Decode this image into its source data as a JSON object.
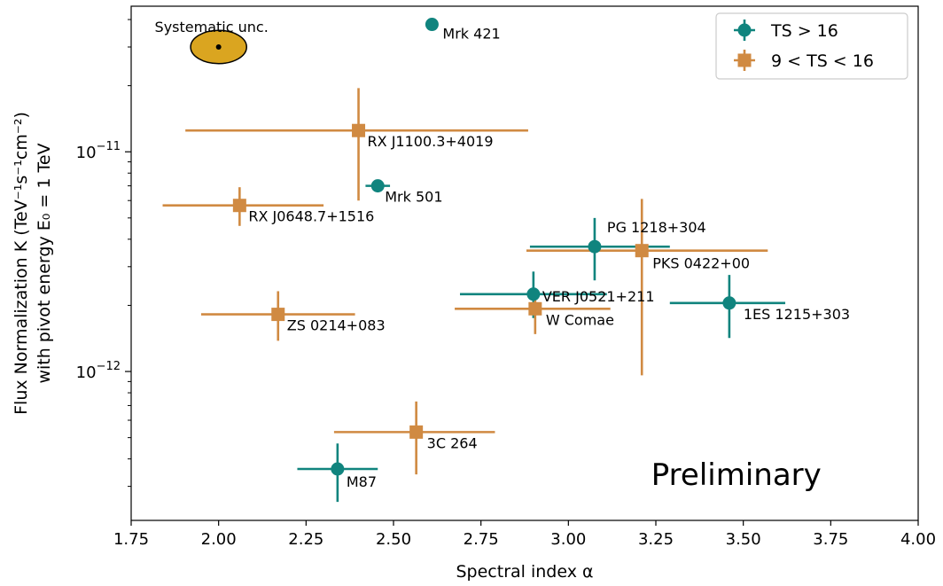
{
  "chart_data": {
    "type": "scatter",
    "xlabel": "Spectral index α",
    "ylabel_line1": "Flux Normalization K (TeV⁻¹s⁻¹cm⁻²)",
    "ylabel_line2": "with pivot energy E₀ = 1 TeV",
    "xlim": [
      1.75,
      4.0
    ],
    "ylim": [
      2.1e-13,
      4.6e-11
    ],
    "y_scale": "log",
    "x_ticks": [
      1.75,
      2.0,
      2.25,
      2.5,
      2.75,
      3.0,
      3.25,
      3.5,
      3.75,
      4.0
    ],
    "x_tick_labels": [
      "1.75",
      "2.00",
      "2.25",
      "2.50",
      "2.75",
      "3.00",
      "3.25",
      "3.50",
      "3.75",
      "4.00"
    ],
    "y_major_ticks": [
      1e-12,
      1e-11
    ],
    "y_major_tick_labels": [
      [
        "10",
        "−12"
      ],
      [
        "10",
        "−11"
      ]
    ],
    "legend": {
      "placement": "top-right",
      "entries": [
        {
          "label": "TS > 16",
          "marker": "circle",
          "color": "#10847e"
        },
        {
          "label": "9 < TS < 16",
          "marker": "square",
          "color": "#d08a42"
        }
      ]
    },
    "annotation": "Preliminary",
    "systematic": {
      "label": "Systematic unc.",
      "x": 2.0,
      "y": 3e-11,
      "dx": 0.08,
      "dy_factor": 1.19,
      "color": "#daa520"
    },
    "series": [
      {
        "name": "TS > 16",
        "marker": "circle",
        "color": "#10847e",
        "points": [
          {
            "label": "Mrk 421",
            "x": 2.61,
            "y": 3.8e-11,
            "xerr": [
              0,
              0
            ],
            "yerr": [
              3.8e-11,
              3.8e-11
            ]
          },
          {
            "label": "Mrk 501",
            "x": 2.455,
            "y": 7e-12,
            "xerr": [
              2.42,
              2.49
            ],
            "yerr": [
              6.65e-12,
              7.35e-12
            ]
          },
          {
            "label": "PG 1218+304",
            "x": 3.075,
            "y": 3.7e-12,
            "xerr": [
              2.89,
              3.29
            ],
            "yerr": [
              2.6e-12,
              5e-12
            ]
          },
          {
            "label": "VER J0521+211",
            "x": 2.9,
            "y": 2.25e-12,
            "xerr": [
              2.69,
              3.11
            ],
            "yerr": [
              1.75e-12,
              2.85e-12
            ]
          },
          {
            "label": "1ES 1215+303",
            "x": 3.46,
            "y": 2.05e-12,
            "xerr": [
              3.29,
              3.62
            ],
            "yerr": [
              1.42e-12,
              2.75e-12
            ]
          },
          {
            "label": "M87",
            "x": 2.34,
            "y": 3.6e-13,
            "xerr": [
              2.225,
              2.455
            ],
            "yerr": [
              2.55e-13,
              4.7e-13
            ]
          }
        ]
      },
      {
        "name": "9 < TS < 16",
        "marker": "square",
        "color": "#d08a42",
        "points": [
          {
            "label": "RX J1100.3+4019",
            "x": 2.4,
            "y": 1.25e-11,
            "xerr": [
              1.905,
              2.885
            ],
            "yerr": [
              6e-12,
              1.95e-11
            ]
          },
          {
            "label": "RX J0648.7+1516",
            "x": 2.06,
            "y": 5.7e-12,
            "xerr": [
              1.84,
              2.3
            ],
            "yerr": [
              4.6e-12,
              6.9e-12
            ]
          },
          {
            "label": "PKS 0422+00",
            "x": 3.21,
            "y": 3.55e-12,
            "xerr": [
              2.88,
              3.57
            ],
            "yerr": [
              9.6e-13,
              6.1e-12
            ]
          },
          {
            "label": "W Comae",
            "x": 2.905,
            "y": 1.93e-12,
            "xerr": [
              2.675,
              3.12
            ],
            "yerr": [
              1.48e-12,
              2.35e-12
            ]
          },
          {
            "label": "ZS 0214+083",
            "x": 2.17,
            "y": 1.82e-12,
            "xerr": [
              1.95,
              2.39
            ],
            "yerr": [
              1.38e-12,
              2.32e-12
            ]
          },
          {
            "label": "3C 264",
            "x": 2.565,
            "y": 5.3e-13,
            "xerr": [
              2.33,
              2.79
            ],
            "yerr": [
              3.4e-13,
              7.3e-13
            ]
          }
        ]
      }
    ]
  }
}
